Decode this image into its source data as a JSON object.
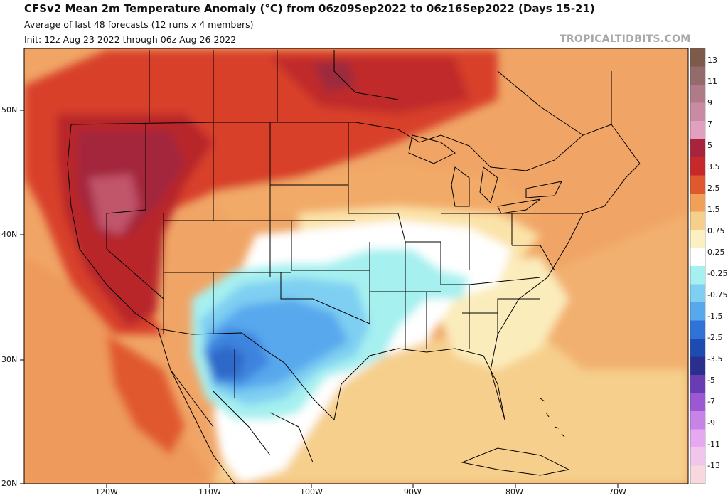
{
  "header": {
    "title": "CFSv2 Mean 2m Temperature Anomaly (°C) from 06z09Sep2022 to 06z16Sep2022 (Days 15-21)",
    "subtitle1": "Average of last 48 forecasts (12 runs x 4 members)",
    "subtitle2": "Init: 12z Aug 23 2022 through 06z Aug 26 2022",
    "watermark": "TROPICALTIDBITS.COM"
  },
  "axes": {
    "lat_labels": [
      "50N",
      "40N",
      "30N",
      "20N"
    ],
    "lon_labels": [
      "120W",
      "110W",
      "100W",
      "90W",
      "80W",
      "70W"
    ]
  },
  "colorbar": {
    "labels": [
      "13",
      "11",
      "9",
      "7",
      "5",
      "3.5",
      "2.5",
      "1.5",
      "0.75",
      "0.25",
      "-0.25",
      "-0.75",
      "-1.5",
      "-2.5",
      "-3.5",
      "-5",
      "-7",
      "-9",
      "-11",
      "-13"
    ],
    "colors": [
      "#7d5a4a",
      "#946b6b",
      "#b07b89",
      "#c98aa3",
      "#e1a0c0",
      "#a8243c",
      "#c7282a",
      "#e0582d",
      "#f1a05a",
      "#f6cf8c",
      "#fbf0c2",
      "#ffffff",
      "#a6f0f0",
      "#7ecff2",
      "#58a8ee",
      "#2f72d8",
      "#1d4bb2",
      "#2a2f8e",
      "#6a3cb3",
      "#9c57d2",
      "#c783e6",
      "#e6a9f0",
      "#f0c6ea",
      "#f7d8dc"
    ]
  },
  "map": {
    "ocean_color": "#f5d08a",
    "land_base_color": "#ef9e60",
    "background_color": "#f0a566"
  }
}
